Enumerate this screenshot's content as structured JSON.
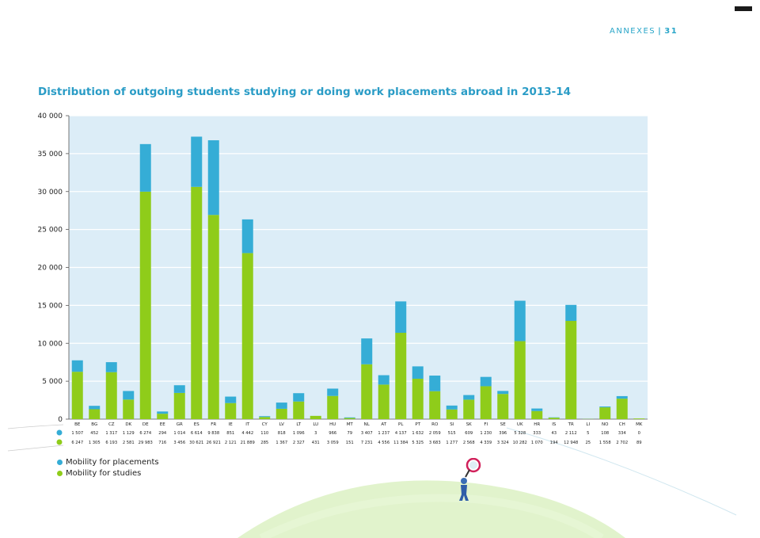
{
  "page": {
    "running_head": "ANNEXES",
    "page_number": "31"
  },
  "colors": {
    "placements": "#35add6",
    "studies": "#8fcc1a",
    "plot_bg": "#dcedf7",
    "grid": "#ffffff",
    "title": "#2a9cc6"
  },
  "legend": {
    "placements_label": "Mobility for placements",
    "studies_label": "Mobility for studies"
  },
  "icons": {
    "figure": "person-with-magnifier-icon"
  },
  "chart_data": {
    "type": "bar",
    "stacked": true,
    "title": "Distribution of outgoing students studying or doing work placements abroad in 2013-14",
    "xlabel": "",
    "ylabel": "",
    "ylim": [
      0,
      40000
    ],
    "yticks": [
      0,
      5000,
      10000,
      15000,
      20000,
      25000,
      30000,
      35000,
      40000
    ],
    "ytick_labels": [
      "0",
      "5 000",
      "10 000",
      "15 000",
      "20 000",
      "25 000",
      "30 000",
      "35 000",
      "40 000"
    ],
    "grid": true,
    "legend_position": "bottom-left",
    "categories": [
      "BE",
      "BG",
      "CZ",
      "DK",
      "DE",
      "EE",
      "GR",
      "ES",
      "FR",
      "IE",
      "IT",
      "CY",
      "LV",
      "LT",
      "LU",
      "HU",
      "MT",
      "NL",
      "AT",
      "PL",
      "PT",
      "RO",
      "SI",
      "SK",
      "FI",
      "SE",
      "UK",
      "HR",
      "IS",
      "TR",
      "LI",
      "NO",
      "CH",
      "MK"
    ],
    "series": [
      {
        "name": "Mobility for studies",
        "values": [
          6247,
          1305,
          6193,
          2581,
          29983,
          716,
          3456,
          30621,
          26921,
          2121,
          21889,
          285,
          1367,
          2327,
          431,
          3059,
          151,
          7231,
          4556,
          11384,
          5325,
          3683,
          1277,
          2568,
          4339,
          3324,
          10282,
          1070,
          194,
          12948,
          25,
          1558,
          2702,
          89
        ],
        "labels": [
          "6 247",
          "1 305",
          "6 193",
          "2 581",
          "29 983",
          "716",
          "3 456",
          "30 621",
          "26 921",
          "2 121",
          "21 889",
          "285",
          "1 367",
          "2 327",
          "431",
          "3 059",
          "151",
          "7 231",
          "4 556",
          "11 384",
          "5 325",
          "3 683",
          "1 277",
          "2 568",
          "4 339",
          "3 324",
          "10 282",
          "1 070",
          "194",
          "12 948",
          "25",
          "1 558",
          "2 702",
          "89"
        ]
      },
      {
        "name": "Mobility for placements",
        "values": [
          1507,
          452,
          1317,
          1129,
          6274,
          294,
          1014,
          6614,
          9838,
          851,
          4442,
          110,
          818,
          1096,
          3,
          966,
          79,
          3407,
          1237,
          4137,
          1632,
          2059,
          515,
          609,
          1230,
          396,
          5328,
          333,
          43,
          2112,
          5,
          108,
          334,
          0
        ],
        "labels": [
          "1 507",
          "452",
          "1 317",
          "1 129",
          "6 274",
          "294",
          "1 014",
          "6 614",
          "9 838",
          "851",
          "4 442",
          "110",
          "818",
          "1 096",
          "3",
          "966",
          "79",
          "3 407",
          "1 237",
          "4 137",
          "1 632",
          "2 059",
          "515",
          "609",
          "1 230",
          "396",
          "5 328",
          "333",
          "43",
          "2 112",
          "5",
          "108",
          "334",
          "0"
        ]
      }
    ]
  }
}
